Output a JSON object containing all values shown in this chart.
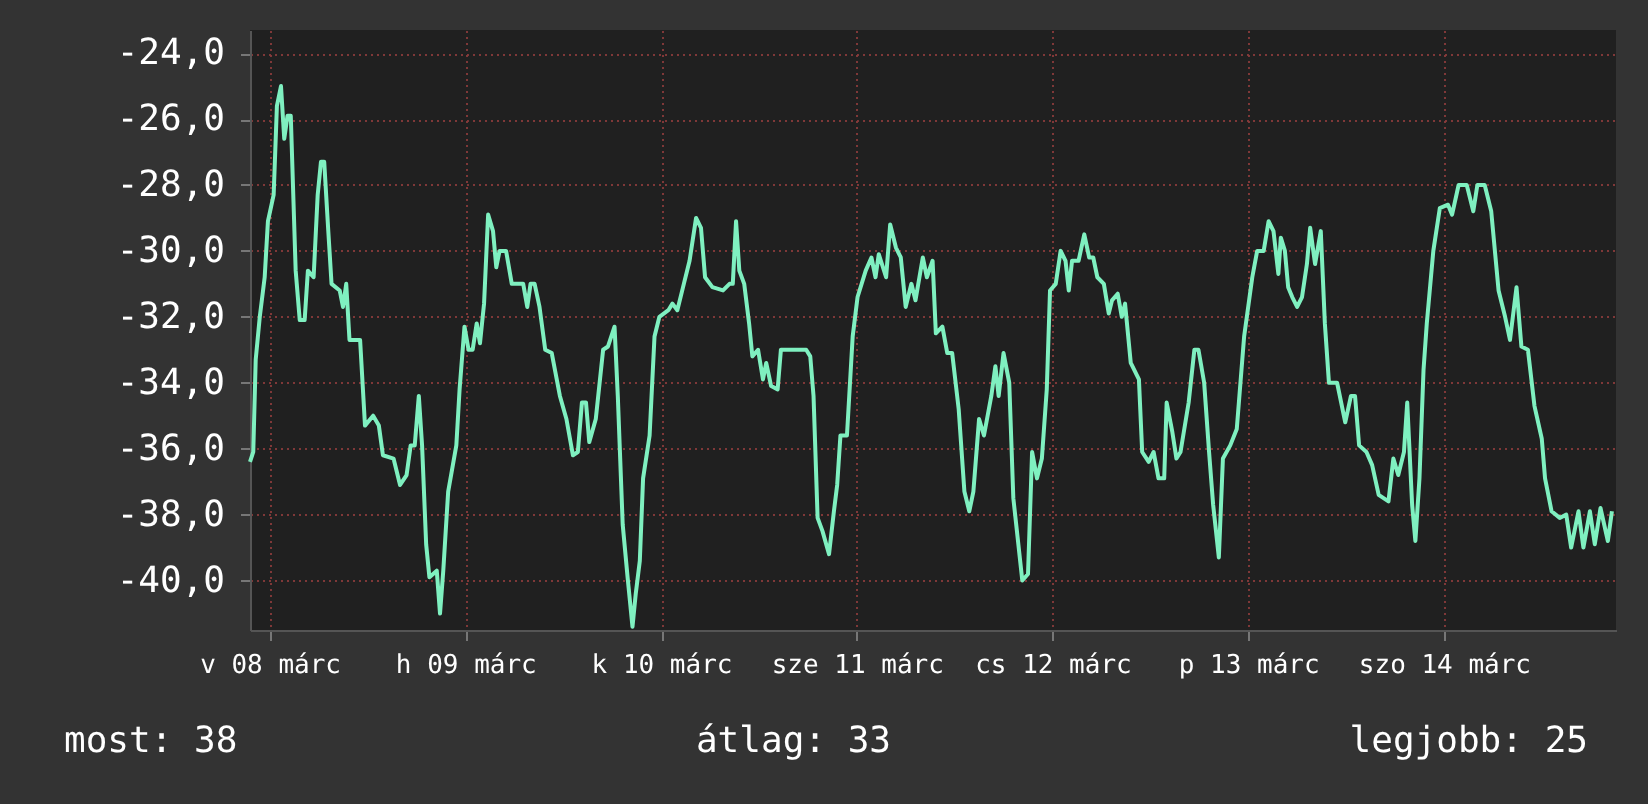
{
  "chart_data": {
    "type": "line",
    "x": [
      "--03-07T21:36",
      "--03-07T22:00",
      "--03-07T22:18",
      "--03-07T22:48",
      "--03-07T23:24",
      "--03-07T23:48",
      "--03-08T00:30",
      "--03-08T00:54",
      "--03-08T01:24",
      "--03-08T01:48",
      "--03-08T02:12",
      "--03-08T02:36",
      "--03-08T03:12",
      "--03-08T03:42",
      "--03-08T04:18",
      "--03-08T04:42",
      "--03-08T05:24",
      "--03-08T05:54",
      "--03-08T06:18",
      "--03-08T06:42",
      "--03-08T07:12",
      "--03-08T07:36",
      "--03-08T08:36",
      "--03-08T09:00",
      "--03-08T09:24",
      "--03-08T09:48",
      "--03-08T11:06",
      "--03-08T11:42",
      "--03-08T12:42",
      "--03-08T13:24",
      "--03-08T13:54",
      "--03-08T15:12",
      "--03-08T16:00",
      "--03-08T16:48",
      "--03-08T17:18",
      "--03-08T17:48",
      "--03-08T18:18",
      "--03-08T18:42",
      "--03-08T19:12",
      "--03-08T19:36",
      "--03-08T20:30",
      "--03-08T20:54",
      "--03-08T21:18",
      "--03-08T21:54",
      "--03-08T22:54",
      "--03-08T23:18",
      "--03-08T23:54",
      "--03-09T00:24",
      "--03-09T00:54",
      "--03-09T01:24",
      "--03-09T01:48",
      "--03-09T02:18",
      "--03-09T02:48",
      "--03-09T03:24",
      "--03-09T03:48",
      "--03-09T04:12",
      "--03-09T05:00",
      "--03-09T05:42",
      "--03-09T07:06",
      "--03-09T07:36",
      "--03-09T08:00",
      "--03-09T08:30",
      "--03-09T09:06",
      "--03-09T09:48",
      "--03-09T10:36",
      "--03-09T11:36",
      "--03-09T12:24",
      "--03-09T13:12",
      "--03-09T13:48",
      "--03-09T14:18",
      "--03-09T14:48",
      "--03-09T15:12",
      "--03-09T16:00",
      "--03-09T16:54",
      "--03-09T17:30",
      "--03-09T18:18",
      "--03-09T18:42",
      "--03-09T19:18",
      "--03-09T19:54",
      "--03-09T20:30",
      "--03-09T20:54",
      "--03-09T21:24",
      "--03-09T21:48",
      "--03-09T22:36",
      "--03-09T23:12",
      "--03-09T23:48",
      "--03-10T00:54",
      "--03-10T01:24",
      "--03-10T02:00",
      "--03-10T02:42",
      "--03-10T03:30",
      "--03-10T04:18",
      "--03-10T04:54",
      "--03-10T05:24",
      "--03-10T06:18",
      "--03-10T07:36",
      "--03-10T08:24",
      "--03-10T08:48",
      "--03-10T09:12",
      "--03-10T09:36",
      "--03-10T10:12",
      "--03-10T10:48",
      "--03-10T11:12",
      "--03-10T11:54",
      "--03-10T12:30",
      "--03-10T12:54",
      "--03-10T13:30",
      "--03-10T14:18",
      "--03-10T14:42",
      "--03-10T16:06",
      "--03-10T17:48",
      "--03-10T18:18",
      "--03-10T18:42",
      "--03-10T19:12",
      "--03-10T19:48",
      "--03-10T20:36",
      "--03-10T21:12",
      "--03-10T21:36",
      "--03-10T22:00",
      "--03-10T22:48",
      "--03-10T23:30",
      "--03-11T00:06",
      "--03-11T01:06",
      "--03-11T01:48",
      "--03-11T02:18",
      "--03-11T02:42",
      "--03-11T03:36",
      "--03-11T04:06",
      "--03-11T04:48",
      "--03-11T05:24",
      "--03-11T06:00",
      "--03-11T06:42",
      "--03-11T07:12",
      "--03-11T08:06",
      "--03-11T08:36",
      "--03-11T09:18",
      "--03-11T09:42",
      "--03-11T10:30",
      "--03-11T11:06",
      "--03-11T11:42",
      "--03-11T12:30",
      "--03-11T13:12",
      "--03-11T13:48",
      "--03-11T14:18",
      "--03-11T15:00",
      "--03-11T15:36",
      "--03-11T16:30",
      "--03-11T17:00",
      "--03-11T17:24",
      "--03-11T18:00",
      "--03-11T18:42",
      "--03-11T19:12",
      "--03-11T20:18",
      "--03-11T21:00",
      "--03-11T21:30",
      "--03-11T22:06",
      "--03-11T22:42",
      "--03-11T23:18",
      "--03-11T23:42",
      "--03-12T00:24",
      "--03-12T01:00",
      "--03-12T01:36",
      "--03-12T02:00",
      "--03-12T02:24",
      "--03-12T03:12",
      "--03-12T03:54",
      "--03-12T04:30",
      "--03-12T05:00",
      "--03-12T05:30",
      "--03-12T06:18",
      "--03-12T06:54",
      "--03-12T07:18",
      "--03-12T08:00",
      "--03-12T08:30",
      "--03-12T08:54",
      "--03-12T09:36",
      "--03-12T10:36",
      "--03-12T11:00",
      "--03-12T11:48",
      "--03-12T12:24",
      "--03-12T13:00",
      "--03-12T13:42",
      "--03-12T14:00",
      "--03-12T14:42",
      "--03-12T15:12",
      "--03-12T15:42",
      "--03-12T16:42",
      "--03-12T17:24",
      "--03-12T17:54",
      "--03-12T18:36",
      "--03-12T19:12",
      "--03-12T19:42",
      "--03-12T20:24",
      "--03-12T20:54",
      "--03-12T21:48",
      "--03-12T22:36",
      "--03-12T23:30",
      "--03-13T00:30",
      "--03-13T01:06",
      "--03-13T01:54",
      "--03-13T02:30",
      "--03-13T03:06",
      "--03-13T03:42",
      "--03-13T04:00",
      "--03-13T04:30",
      "--03-13T04:54",
      "--03-13T05:24",
      "--03-13T06:00",
      "--03-13T06:36",
      "--03-13T07:12",
      "--03-13T07:36",
      "--03-13T08:12",
      "--03-13T08:54",
      "--03-13T09:24",
      "--03-13T09:54",
      "--03-13T10:54",
      "--03-13T11:54",
      "--03-13T12:36",
      "--03-13T13:06",
      "--03-13T13:36",
      "--03-13T14:30",
      "--03-13T15:12",
      "--03-13T16:00",
      "--03-13T17:12",
      "--03-13T17:48",
      "--03-13T18:24",
      "--03-13T19:06",
      "--03-13T19:30",
      "--03-13T20:06",
      "--03-13T20:30",
      "--03-13T21:00",
      "--03-13T21:30",
      "--03-13T21:54",
      "--03-13T22:42",
      "--03-13T23:30",
      "--03-14T00:30",
      "--03-14T01:00",
      "--03-14T01:48",
      "--03-14T02:48",
      "--03-14T03:36",
      "--03-14T04:06",
      "--03-14T05:00",
      "--03-14T05:48",
      "--03-14T06:42",
      "--03-14T07:30",
      "--03-14T08:06",
      "--03-14T08:54",
      "--03-14T09:30",
      "--03-14T10:18",
      "--03-14T11:06",
      "--03-14T12:00",
      "--03-14T12:24",
      "--03-14T13:12",
      "--03-14T14:12",
      "--03-14T15:00",
      "--03-14T15:36",
      "--03-14T16:30",
      "--03-14T17:06",
      "--03-14T17:54",
      "--03-14T18:30",
      "--03-14T19:12",
      "--03-14T20:06",
      "--03-14T20:36"
    ],
    "series": [
      {
        "color": "#7ff0c0",
        "values": [
          -36.4,
          -36.1,
          -33.3,
          -32.0,
          -30.8,
          -29.1,
          -28.3,
          -25.6,
          -25.0,
          -26.6,
          -25.9,
          -25.9,
          -30.6,
          -32.1,
          -32.1,
          -30.6,
          -30.8,
          -28.3,
          -27.3,
          -27.3,
          -29.4,
          -31.0,
          -31.2,
          -31.7,
          -31.0,
          -32.7,
          -32.7,
          -35.3,
          -35.0,
          -35.3,
          -36.2,
          -36.3,
          -37.1,
          -36.8,
          -35.9,
          -35.9,
          -34.4,
          -35.9,
          -38.9,
          -39.9,
          -39.7,
          -41.0,
          -39.7,
          -37.3,
          -35.9,
          -34.2,
          -32.3,
          -33.0,
          -33.0,
          -32.2,
          -32.8,
          -31.6,
          -28.9,
          -29.4,
          -30.5,
          -30.0,
          -30.0,
          -31.0,
          -31.0,
          -31.7,
          -31.0,
          -31.0,
          -31.7,
          -33.0,
          -33.1,
          -34.4,
          -35.1,
          -36.2,
          -36.1,
          -34.6,
          -34.6,
          -35.8,
          -35.1,
          -33.0,
          -32.9,
          -32.3,
          -34.4,
          -38.3,
          -39.9,
          -41.4,
          -40.4,
          -39.4,
          -36.9,
          -35.6,
          -32.6,
          -32.0,
          -31.8,
          -31.6,
          -31.8,
          -31.1,
          -30.3,
          -29.0,
          -29.3,
          -30.8,
          -31.1,
          -31.2,
          -31.0,
          -31.0,
          -29.1,
          -30.6,
          -31.0,
          -32.2,
          -33.2,
          -33.0,
          -33.9,
          -33.4,
          -34.1,
          -34.2,
          -33.0,
          -33.0,
          -33.0,
          -33.2,
          -34.4,
          -38.1,
          -38.5,
          -39.2,
          -37.9,
          -37.1,
          -35.6,
          -35.6,
          -32.6,
          -31.4,
          -30.6,
          -30.2,
          -30.8,
          -30.1,
          -30.8,
          -29.2,
          -29.9,
          -30.2,
          -31.7,
          -31.0,
          -31.5,
          -30.2,
          -30.8,
          -30.3,
          -32.5,
          -32.3,
          -33.1,
          -33.1,
          -34.8,
          -37.3,
          -37.9,
          -37.3,
          -35.1,
          -35.6,
          -34.4,
          -33.5,
          -34.4,
          -33.1,
          -34.0,
          -37.5,
          -40.0,
          -39.8,
          -36.1,
          -36.9,
          -36.3,
          -34.2,
          -31.2,
          -31.0,
          -30.0,
          -30.3,
          -31.2,
          -30.3,
          -30.3,
          -29.5,
          -30.2,
          -30.2,
          -30.8,
          -31.0,
          -31.9,
          -31.5,
          -31.3,
          -32.0,
          -31.6,
          -33.4,
          -33.9,
          -36.1,
          -36.4,
          -36.1,
          -36.9,
          -36.9,
          -34.6,
          -35.5,
          -36.3,
          -36.1,
          -34.6,
          -33.0,
          -33.0,
          -34.0,
          -36.1,
          -37.7,
          -39.3,
          -36.3,
          -35.9,
          -35.4,
          -32.6,
          -30.8,
          -30.0,
          -30.0,
          -29.1,
          -29.4,
          -30.7,
          -29.6,
          -30.0,
          -31.1,
          -31.4,
          -31.7,
          -31.4,
          -30.4,
          -29.3,
          -30.4,
          -29.4,
          -32.2,
          -34.0,
          -34.0,
          -35.2,
          -34.4,
          -34.4,
          -35.9,
          -36.1,
          -36.5,
          -37.4,
          -37.6,
          -36.3,
          -36.8,
          -36.1,
          -34.6,
          -37.7,
          -38.8,
          -36.9,
          -33.6,
          -32.2,
          -30.0,
          -28.7,
          -28.6,
          -28.9,
          -28.0,
          -28.0,
          -28.8,
          -28.0,
          -28.0,
          -28.8,
          -31.2,
          -32.0,
          -32.7,
          -31.1,
          -32.9,
          -33.0,
          -34.7,
          -35.7,
          -36.9,
          -37.9,
          -38.1,
          -38.0,
          -39.0,
          -37.9,
          -39.0,
          -37.9,
          -38.9,
          -37.8,
          -38.8,
          -37.9
        ]
      }
    ],
    "xlim": [
      "--03-07T21:36",
      "--03-14T21:06"
    ],
    "xticks": [
      {
        "value": "--03-08",
        "label": "v 08 márc"
      },
      {
        "value": "--03-09",
        "label": "h 09 márc"
      },
      {
        "value": "--03-10",
        "label": "k 10 márc"
      },
      {
        "value": "--03-11",
        "label": "sze 11 márc"
      },
      {
        "value": "--03-12",
        "label": "cs 12 márc"
      },
      {
        "value": "--03-13",
        "label": "p 13 márc"
      },
      {
        "value": "--03-14",
        "label": "szo 14 márc"
      }
    ],
    "ylim": [
      -41.5,
      -23.3
    ],
    "yticks": [
      {
        "value": -40,
        "label": "-40,0"
      },
      {
        "value": -38,
        "label": "-38,0"
      },
      {
        "value": -36,
        "label": "-36,0"
      },
      {
        "value": -34,
        "label": "-34,0"
      },
      {
        "value": -32,
        "label": "-32,0"
      },
      {
        "value": -30,
        "label": "-30,0"
      },
      {
        "value": -28,
        "label": "-28,0"
      },
      {
        "value": -26,
        "label": "-26,0"
      },
      {
        "value": -24,
        "label": "-24,0"
      }
    ],
    "grid": true,
    "annotations": [
      "most: 38",
      "átlag: 33",
      "legjobb: 25"
    ]
  }
}
